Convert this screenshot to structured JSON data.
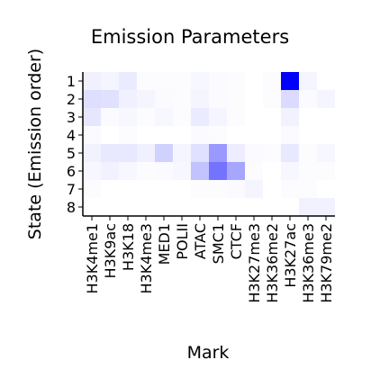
{
  "chart_data": {
    "type": "heatmap",
    "title": "Emission Parameters",
    "xlabel": "Mark",
    "ylabel": "State (Emission order)",
    "x_categories": [
      "H3K4me1",
      "H3K9ac",
      "H3K18",
      "H3K4me3",
      "MED1",
      "POLII",
      "ATAC",
      "SMC1",
      "CTCF",
      "H3K27me3",
      "H3K36me2",
      "H3K27ac",
      "H3K36me3",
      "H3K79me2"
    ],
    "y_categories": [
      "1",
      "2",
      "3",
      "4",
      "5",
      "6",
      "7",
      "8"
    ],
    "values": [
      [
        0.06,
        0.04,
        0.08,
        0.01,
        0.01,
        0.01,
        0.03,
        0.02,
        0.01,
        0.0,
        0.01,
        1.0,
        0.04,
        0.0
      ],
      [
        0.13,
        0.12,
        0.06,
        0.04,
        0.02,
        0.01,
        0.04,
        0.02,
        0.01,
        0.0,
        0.01,
        0.14,
        0.02,
        0.04
      ],
      [
        0.1,
        0.02,
        0.03,
        0.01,
        0.03,
        0.01,
        0.08,
        0.04,
        0.01,
        0.0,
        0.0,
        0.05,
        0.0,
        0.0
      ],
      [
        0.02,
        0.0,
        0.01,
        0.0,
        0.0,
        0.0,
        0.02,
        0.01,
        0.0,
        0.0,
        0.0,
        0.02,
        0.0,
        0.0
      ],
      [
        0.05,
        0.09,
        0.09,
        0.06,
        0.18,
        0.04,
        0.12,
        0.4,
        0.07,
        0.02,
        0.01,
        0.09,
        0.01,
        0.03
      ],
      [
        0.03,
        0.05,
        0.03,
        0.01,
        0.02,
        0.03,
        0.24,
        0.55,
        0.35,
        0.01,
        0.0,
        0.03,
        0.01,
        0.01
      ],
      [
        0.01,
        0.0,
        0.0,
        0.0,
        0.0,
        0.0,
        0.01,
        0.01,
        0.02,
        0.04,
        0.0,
        0.01,
        0.01,
        0.0
      ],
      [
        0.0,
        0.0,
        0.0,
        0.0,
        0.0,
        0.0,
        0.0,
        0.0,
        0.0,
        0.0,
        0.0,
        0.0,
        0.05,
        0.05
      ]
    ],
    "vmin": 0,
    "vmax": 1,
    "colormap": {
      "low": "#ffffff",
      "high": "#0000ff"
    },
    "grid": false,
    "legend": "none"
  }
}
